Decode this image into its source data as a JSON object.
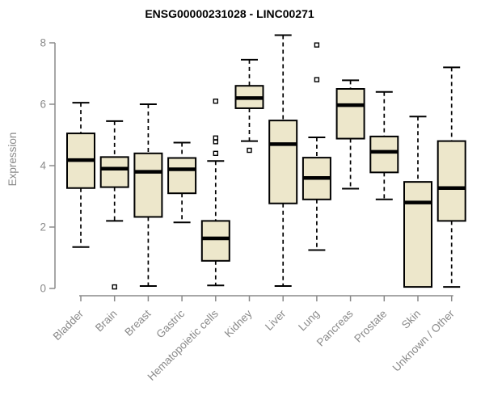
{
  "chart_data": {
    "type": "boxplot",
    "title": "ENSG00000231028 - LINC00271",
    "ylabel": "Expression",
    "xlabel": "",
    "ylim": [
      0,
      8
    ],
    "yticks": [
      0,
      2,
      4,
      6,
      8
    ],
    "grid": false,
    "legend": false,
    "colors": {
      "box_fill": "#EDE7CB",
      "box_border": "#000000",
      "median": "#000000",
      "whisker": "#000000",
      "axis": "#8A8A8A",
      "tick_label": "#8A8A8A",
      "title": "#000000",
      "background": "#FFFFFF"
    },
    "categories": [
      "Bladder",
      "Brain",
      "Breast",
      "Gastric",
      "Hematopoietic cells",
      "Kidney",
      "Liver",
      "Lung",
      "Pancreas",
      "Prostate",
      "Skin",
      "Unknown / Other"
    ],
    "boxes": [
      {
        "category": "Bladder",
        "whisker_low": 1.35,
        "q1": 3.27,
        "median": 4.18,
        "q3": 5.05,
        "whisker_high": 6.05,
        "outliers": []
      },
      {
        "category": "Brain",
        "whisker_low": 2.2,
        "q1": 3.3,
        "median": 3.9,
        "q3": 4.28,
        "whisker_high": 5.45,
        "outliers": [
          0.05
        ]
      },
      {
        "category": "Breast",
        "whisker_low": 0.08,
        "q1": 2.33,
        "median": 3.8,
        "q3": 4.4,
        "whisker_high": 6.0,
        "outliers": []
      },
      {
        "category": "Gastric",
        "whisker_low": 2.15,
        "q1": 3.1,
        "median": 3.88,
        "q3": 4.25,
        "whisker_high": 4.75,
        "outliers": []
      },
      {
        "category": "Hematopoietic cells",
        "whisker_low": 0.1,
        "q1": 0.9,
        "median": 1.63,
        "q3": 2.2,
        "whisker_high": 4.15,
        "outliers": [
          6.1,
          4.9,
          4.78,
          4.4
        ]
      },
      {
        "category": "Kidney",
        "whisker_low": 4.8,
        "q1": 5.87,
        "median": 6.2,
        "q3": 6.6,
        "whisker_high": 7.45,
        "outliers": [
          4.5
        ]
      },
      {
        "category": "Liver",
        "whisker_low": 0.08,
        "q1": 2.77,
        "median": 4.7,
        "q3": 5.47,
        "whisker_high": 8.25,
        "outliers": []
      },
      {
        "category": "Lung",
        "whisker_low": 1.25,
        "q1": 2.9,
        "median": 3.6,
        "q3": 4.26,
        "whisker_high": 4.92,
        "outliers": [
          7.93,
          6.8
        ]
      },
      {
        "category": "Pancreas",
        "whisker_low": 3.25,
        "q1": 4.88,
        "median": 5.97,
        "q3": 6.5,
        "whisker_high": 6.78,
        "outliers": []
      },
      {
        "category": "Prostate",
        "whisker_low": 2.9,
        "q1": 3.78,
        "median": 4.45,
        "q3": 4.95,
        "whisker_high": 6.4,
        "outliers": []
      },
      {
        "category": "Skin",
        "whisker_low": 0.05,
        "q1": 0.05,
        "median": 2.8,
        "q3": 3.47,
        "whisker_high": 5.6,
        "outliers": []
      },
      {
        "category": "Unknown / Other",
        "whisker_low": 0.05,
        "q1": 2.2,
        "median": 3.27,
        "q3": 4.8,
        "whisker_high": 7.2,
        "outliers": []
      }
    ]
  }
}
